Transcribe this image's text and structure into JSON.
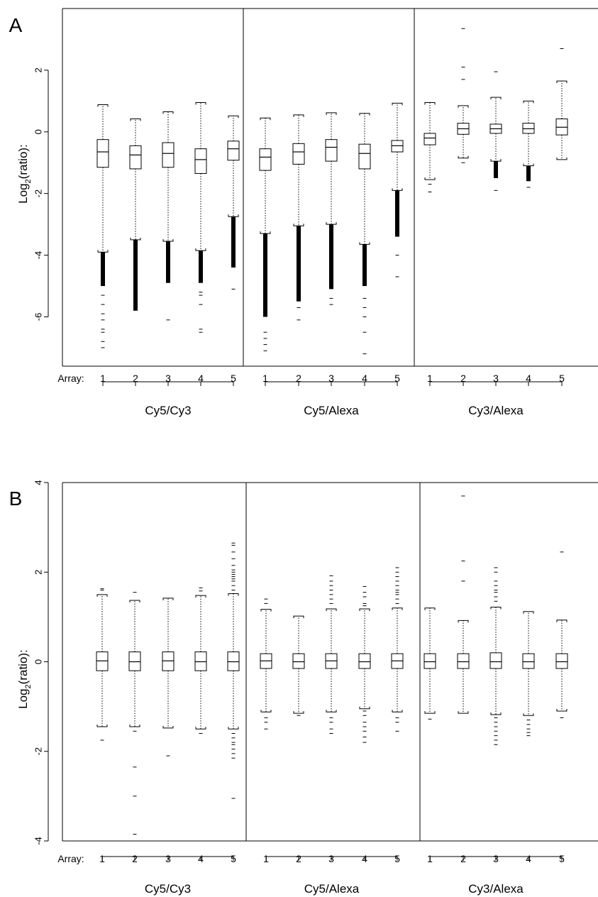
{
  "chart_data": [
    {
      "panel_label": "A",
      "type": "boxplot",
      "ylabel": "Log2(ratio):",
      "ylim": [
        -7.6,
        4.0
      ],
      "yticks": [
        "2",
        "0",
        "-2",
        "-4",
        "-6"
      ],
      "ytick_values": [
        2,
        0,
        -2,
        -4,
        -6
      ],
      "x_prefix": "Array:",
      "groups": [
        {
          "name": "Cy5/Cy3",
          "arrays": [
            {
              "label": "1",
              "q1": -1.15,
              "median": -0.65,
              "q3": -0.25,
              "whisker_low": -3.9,
              "whisker_high": 0.88,
              "dense_low": [
                -3.9,
                -5.0
              ],
              "outliers": [
                -5.3,
                -5.6,
                -5.9,
                -6.1,
                -6.4,
                -6.5,
                -6.8,
                -7.0
              ]
            },
            {
              "label": "2",
              "q1": -1.2,
              "median": -0.75,
              "q3": -0.45,
              "whisker_low": -3.5,
              "whisker_high": 0.42,
              "dense_low": [
                -3.5,
                -5.8
              ],
              "outliers": []
            },
            {
              "label": "3",
              "q1": -1.15,
              "median": -0.7,
              "q3": -0.35,
              "whisker_low": -3.55,
              "whisker_high": 0.65,
              "dense_low": [
                -3.55,
                -4.9
              ],
              "outliers": [
                -6.1
              ]
            },
            {
              "label": "4",
              "q1": -1.35,
              "median": -0.9,
              "q3": -0.55,
              "whisker_low": -3.85,
              "whisker_high": 0.95,
              "dense_low": [
                -3.85,
                -4.9
              ],
              "outliers": [
                -5.2,
                -5.3,
                -5.6,
                -6.4,
                -6.5
              ]
            },
            {
              "label": "5",
              "q1": -0.92,
              "median": -0.55,
              "q3": -0.3,
              "whisker_low": -2.75,
              "whisker_high": 0.52,
              "dense_low": [
                -2.75,
                -4.4
              ],
              "outliers": [
                -5.1
              ]
            }
          ]
        },
        {
          "name": "Cy5/Alexa",
          "arrays": [
            {
              "label": "1",
              "q1": -1.25,
              "median": -0.82,
              "q3": -0.55,
              "whisker_low": -3.3,
              "whisker_high": 0.45,
              "dense_low": [
                -3.3,
                -6.0
              ],
              "outliers": [
                -6.5,
                -6.7,
                -6.9,
                -7.1
              ]
            },
            {
              "label": "2",
              "q1": -1.05,
              "median": -0.65,
              "q3": -0.38,
              "whisker_low": -3.05,
              "whisker_high": 0.55,
              "dense_low": [
                -3.05,
                -5.5
              ],
              "outliers": [
                -5.7,
                -6.1
              ]
            },
            {
              "label": "3",
              "q1": -0.95,
              "median": -0.5,
              "q3": -0.25,
              "whisker_low": -3.0,
              "whisker_high": 0.62,
              "dense_low": [
                -3.0,
                -5.1
              ],
              "outliers": [
                -5.4,
                -5.6
              ]
            },
            {
              "label": "4",
              "q1": -1.2,
              "median": -0.7,
              "q3": -0.4,
              "whisker_low": -3.65,
              "whisker_high": 0.6,
              "dense_low": [
                -3.65,
                -5.0
              ],
              "outliers": [
                -5.4,
                -5.7,
                -6.0,
                -6.5,
                -7.2
              ]
            },
            {
              "label": "5",
              "q1": -0.65,
              "median": -0.45,
              "q3": -0.28,
              "whisker_low": -1.9,
              "whisker_high": 0.93,
              "dense_low": [
                -1.9,
                -3.4
              ],
              "outliers": [
                -4.0,
                -4.7
              ]
            }
          ]
        },
        {
          "name": "Cy3/Alexa",
          "arrays": [
            {
              "label": "1",
              "q1": -0.42,
              "median": -0.2,
              "q3": -0.05,
              "whisker_low": -1.55,
              "whisker_high": 0.95,
              "dense_low": null,
              "outliers": [
                -1.7,
                -1.95
              ]
            },
            {
              "label": "2",
              "q1": -0.08,
              "median": 0.1,
              "q3": 0.28,
              "whisker_low": -0.85,
              "whisker_high": 0.85,
              "dense_low": null,
              "outliers": [
                -1.0,
                1.7,
                2.1,
                3.35
              ]
            },
            {
              "label": "3",
              "q1": -0.05,
              "median": 0.1,
              "q3": 0.25,
              "whisker_low": -0.95,
              "whisker_high": 1.12,
              "dense_low": [
                -0.95,
                -1.5
              ],
              "outliers": [
                -1.9,
                1.95
              ]
            },
            {
              "label": "4",
              "q1": -0.05,
              "median": 0.1,
              "q3": 0.28,
              "whisker_low": -1.1,
              "whisker_high": 1.0,
              "dense_low": [
                -1.1,
                -1.6
              ],
              "outliers": [
                -1.8
              ]
            },
            {
              "label": "5",
              "q1": -0.1,
              "median": 0.15,
              "q3": 0.42,
              "whisker_low": -0.9,
              "whisker_high": 1.65,
              "dense_low": null,
              "outliers": [
                2.7
              ]
            }
          ]
        }
      ]
    },
    {
      "panel_label": "B",
      "type": "boxplot",
      "ylabel": "Log2(ratio):",
      "ylim": [
        -4.0,
        4.0
      ],
      "yticks": [
        "4",
        "2",
        "0",
        "-2",
        "-4"
      ],
      "ytick_values": [
        4,
        2,
        0,
        -2,
        -4
      ],
      "x_prefix": "Array:",
      "groups": [
        {
          "name": "Cy5/Cy3",
          "arrays": [
            {
              "label": "1",
              "q1": -0.2,
              "median": 0.02,
              "q3": 0.22,
              "whisker_low": -1.45,
              "whisker_high": 1.5,
              "dense_low": null,
              "outliers": [
                1.6,
                1.63,
                -1.75
              ]
            },
            {
              "label": "2",
              "q1": -0.2,
              "median": 0.0,
              "q3": 0.22,
              "whisker_low": -1.45,
              "whisker_high": 1.37,
              "dense_low": null,
              "outliers": [
                1.55,
                -1.55,
                -2.35,
                -3.0,
                -3.85
              ]
            },
            {
              "label": "3",
              "q1": -0.2,
              "median": 0.02,
              "q3": 0.22,
              "whisker_low": -1.48,
              "whisker_high": 1.42,
              "dense_low": null,
              "outliers": [
                -2.1
              ]
            },
            {
              "label": "4",
              "q1": -0.2,
              "median": 0.0,
              "q3": 0.22,
              "whisker_low": -1.5,
              "whisker_high": 1.48,
              "dense_low": null,
              "outliers": [
                1.58,
                1.65,
                -1.6
              ]
            },
            {
              "label": "5",
              "q1": -0.2,
              "median": 0.0,
              "q3": 0.22,
              "whisker_low": -1.5,
              "whisker_high": 1.52,
              "dense_low": null,
              "outliers": [
                1.6,
                1.7,
                1.8,
                1.85,
                1.9,
                1.95,
                2.0,
                2.05,
                2.15,
                2.3,
                2.45,
                2.6,
                2.65,
                -1.6,
                -1.7,
                -1.8,
                -1.85,
                -1.95,
                -2.05,
                -2.15,
                -3.05
              ]
            }
          ]
        },
        {
          "name": "Cy5/Alexa",
          "arrays": [
            {
              "label": "1",
              "q1": -0.15,
              "median": 0.02,
              "q3": 0.18,
              "whisker_low": -1.12,
              "whisker_high": 1.17,
              "dense_low": null,
              "outliers": [
                1.3,
                1.4,
                -1.25,
                -1.35,
                -1.5
              ]
            },
            {
              "label": "2",
              "q1": -0.15,
              "median": 0.0,
              "q3": 0.18,
              "whisker_low": -1.15,
              "whisker_high": 1.02,
              "dense_low": null,
              "outliers": [
                -1.2
              ]
            },
            {
              "label": "3",
              "q1": -0.15,
              "median": 0.02,
              "q3": 0.18,
              "whisker_low": -1.12,
              "whisker_high": 1.18,
              "dense_low": null,
              "outliers": [
                1.3,
                1.4,
                1.5,
                1.6,
                1.7,
                1.8,
                1.92,
                -1.25,
                -1.35,
                -1.5,
                -1.6
              ]
            },
            {
              "label": "4",
              "q1": -0.15,
              "median": 0.0,
              "q3": 0.18,
              "whisker_low": -1.05,
              "whisker_high": 1.18,
              "dense_low": null,
              "outliers": [
                1.25,
                1.3,
                1.45,
                1.55,
                1.68,
                -1.1,
                -1.2,
                -1.35,
                -1.45,
                -1.55,
                -1.68,
                -1.8
              ]
            },
            {
              "label": "5",
              "q1": -0.15,
              "median": 0.02,
              "q3": 0.18,
              "whisker_low": -1.12,
              "whisker_high": 1.2,
              "dense_low": null,
              "outliers": [
                1.3,
                1.4,
                1.5,
                1.55,
                1.6,
                1.7,
                1.8,
                1.9,
                2.0,
                2.1,
                -1.25,
                -1.35,
                -1.55
              ]
            }
          ]
        },
        {
          "name": "Cy3/Alexa",
          "arrays": [
            {
              "label": "1",
              "q1": -0.15,
              "median": 0.0,
              "q3": 0.18,
              "whisker_low": -1.15,
              "whisker_high": 1.2,
              "dense_low": null,
              "outliers": [
                -1.28
              ]
            },
            {
              "label": "2",
              "q1": -0.15,
              "median": 0.0,
              "q3": 0.18,
              "whisker_low": -1.15,
              "whisker_high": 0.92,
              "dense_low": null,
              "outliers": [
                1.8,
                2.25,
                3.7
              ]
            },
            {
              "label": "3",
              "q1": -0.15,
              "median": 0.0,
              "q3": 0.2,
              "whisker_low": -1.18,
              "whisker_high": 1.22,
              "dense_low": null,
              "outliers": [
                1.35,
                1.45,
                1.55,
                1.6,
                1.7,
                1.8,
                2.0,
                2.1,
                -1.25,
                -1.35,
                -1.45,
                -1.55,
                -1.65,
                -1.75,
                -1.85
              ]
            },
            {
              "label": "4",
              "q1": -0.15,
              "median": 0.0,
              "q3": 0.18,
              "whisker_low": -1.2,
              "whisker_high": 1.12,
              "dense_low": null,
              "outliers": [
                -1.3,
                -1.4,
                -1.5,
                -1.58,
                -1.65
              ]
            },
            {
              "label": "5",
              "q1": -0.15,
              "median": 0.0,
              "q3": 0.18,
              "whisker_low": -1.1,
              "whisker_high": 0.93,
              "dense_low": null,
              "outliers": [
                2.45,
                -1.25
              ]
            }
          ]
        }
      ]
    }
  ]
}
